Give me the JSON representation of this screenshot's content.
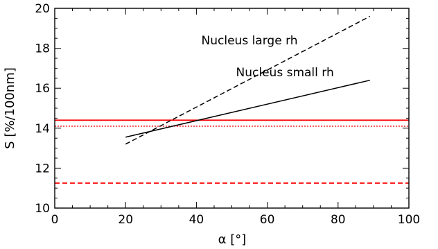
{
  "chart_data": {
    "type": "line",
    "xlabel": "α [°]",
    "ylabel": "S [%/100nm]",
    "xlim": [
      0,
      100
    ],
    "ylim": [
      10,
      20
    ],
    "x_ticks": [
      "0",
      "20",
      "40",
      "60",
      "80",
      "100"
    ],
    "y_ticks": [
      "10",
      "12",
      "14",
      "16",
      "18",
      "20"
    ],
    "grid": false,
    "series": [
      {
        "name": "Nucleus large rh",
        "style": "dashed",
        "color": "#000000",
        "x": [
          20,
          89
        ],
        "y": [
          13.2,
          19.6
        ]
      },
      {
        "name": "Nucleus small rh",
        "style": "solid",
        "color": "#000000",
        "x": [
          20,
          89
        ],
        "y": [
          13.55,
          16.4
        ]
      }
    ],
    "hlines": [
      {
        "y": 14.4,
        "style": "solid",
        "color": "#ff0000"
      },
      {
        "y": 14.1,
        "style": "dotted",
        "color": "#ff0000"
      },
      {
        "y": 11.25,
        "style": "dashed",
        "color": "#ff0000"
      }
    ],
    "annotations": [
      {
        "text": "Nucleus large rh",
        "x": 55,
        "y": 18.2
      },
      {
        "text": "Nucleus small rh",
        "x": 65,
        "y": 16.6
      }
    ]
  }
}
